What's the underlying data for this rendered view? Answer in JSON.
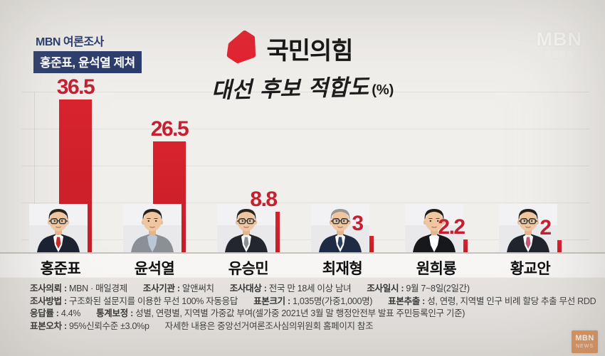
{
  "header": {
    "overline": "MBN 여론조사",
    "headline_badge": "홍준표, 윤석열 제쳐"
  },
  "title": {
    "party": "국민의힘",
    "subtitle": "대선 후보 적합도",
    "unit": "(%)"
  },
  "frame": {
    "watermark": "MBN",
    "watermark_sub": "매일방송",
    "corner_logo": {
      "line1": "MBN",
      "line2": "NEWS"
    }
  },
  "chart_data": {
    "type": "bar",
    "title": "국민의힘 대선 후보 적합도 (%)",
    "categories": [
      "홍준표",
      "윤석열",
      "유승민",
      "최재형",
      "원희룡",
      "황교안"
    ],
    "values": [
      36.5,
      26.5,
      8.8,
      3,
      2.2,
      2
    ],
    "value_labels": [
      "36.5",
      "26.5",
      "8.8",
      "3",
      "2.2",
      "2"
    ],
    "xlabel": "",
    "ylabel": "적합도(%)",
    "ylim": [
      0,
      40
    ],
    "grid": "faint-horizontal",
    "legend": "none",
    "bar_color": "#cd202a",
    "value_label_color": "#c32031"
  },
  "candidates": [
    {
      "name": "홍준표",
      "avatar": {
        "hair": "#2a231e",
        "suit": "#1d2232",
        "shirt": "#ffffff",
        "tie": "#c62b2b",
        "glasses": true
      }
    },
    {
      "name": "윤석열",
      "avatar": {
        "hair": "#27211c",
        "suit": "#8b9096",
        "shirt": "#b9c7d8",
        "tie": "",
        "glasses": false
      }
    },
    {
      "name": "유승민",
      "avatar": {
        "hair": "#2b2520",
        "suit": "#23262e",
        "shirt": "#ffffff",
        "tie": "#8a8f98",
        "glasses": true
      }
    },
    {
      "name": "최재형",
      "avatar": {
        "hair": "#999795",
        "suit": "#1f2a44",
        "shirt": "#ffffff",
        "tie": "#2c3f66",
        "glasses": true
      }
    },
    {
      "name": "원희룡",
      "avatar": {
        "hair": "#1f1b17",
        "suit": "#17181c",
        "shirt": "#ffffff",
        "tie": "",
        "glasses": false
      }
    },
    {
      "name": "황교안",
      "avatar": {
        "hair": "#262019",
        "suit": "#20242c",
        "shirt": "#ffffff",
        "tie": "#c05a74",
        "glasses": true
      }
    }
  ],
  "survey": {
    "lines": [
      [
        {
          "label": "조사의뢰",
          "value": "MBN · 매일경제"
        },
        {
          "label": "조사기관",
          "value": "알앤써치"
        },
        {
          "label": "조사대상",
          "value": "전국 만 18세 이상 남녀"
        },
        {
          "label": "조사일시",
          "value": "9월 7~8일(2일간)"
        }
      ],
      [
        {
          "label": "조사방법",
          "value": "구조화된 설문지를 이용한 무선 100% 자동응답"
        },
        {
          "label": "표본크기",
          "value": "1,035명(가중1,000명)"
        },
        {
          "label": "표본추출",
          "value": "성, 연령, 지역별 인구 비례 할당 추출 무선 RDD"
        }
      ],
      [
        {
          "label": "응답률",
          "value": "4.4%"
        },
        {
          "label": "통계보정",
          "value": "성별, 연령별, 지역별 가중값 부여(셀가중 2021년 3월 말 행정안전부 발표 주민등록인구 기준)"
        }
      ],
      [
        {
          "label": "표본오차",
          "value": "95%신뢰수준 ±3.0%p"
        },
        {
          "label": "",
          "value": "자세한 내용은 중앙선거여론조사심의위원회 홈페이지 참조"
        }
      ]
    ]
  },
  "colors": {
    "background": "#f1efec",
    "bar": "#cd202a",
    "value_label": "#c32031",
    "badge_navy": "#2b3c6b",
    "corner_logo_orange": "#e09258"
  }
}
